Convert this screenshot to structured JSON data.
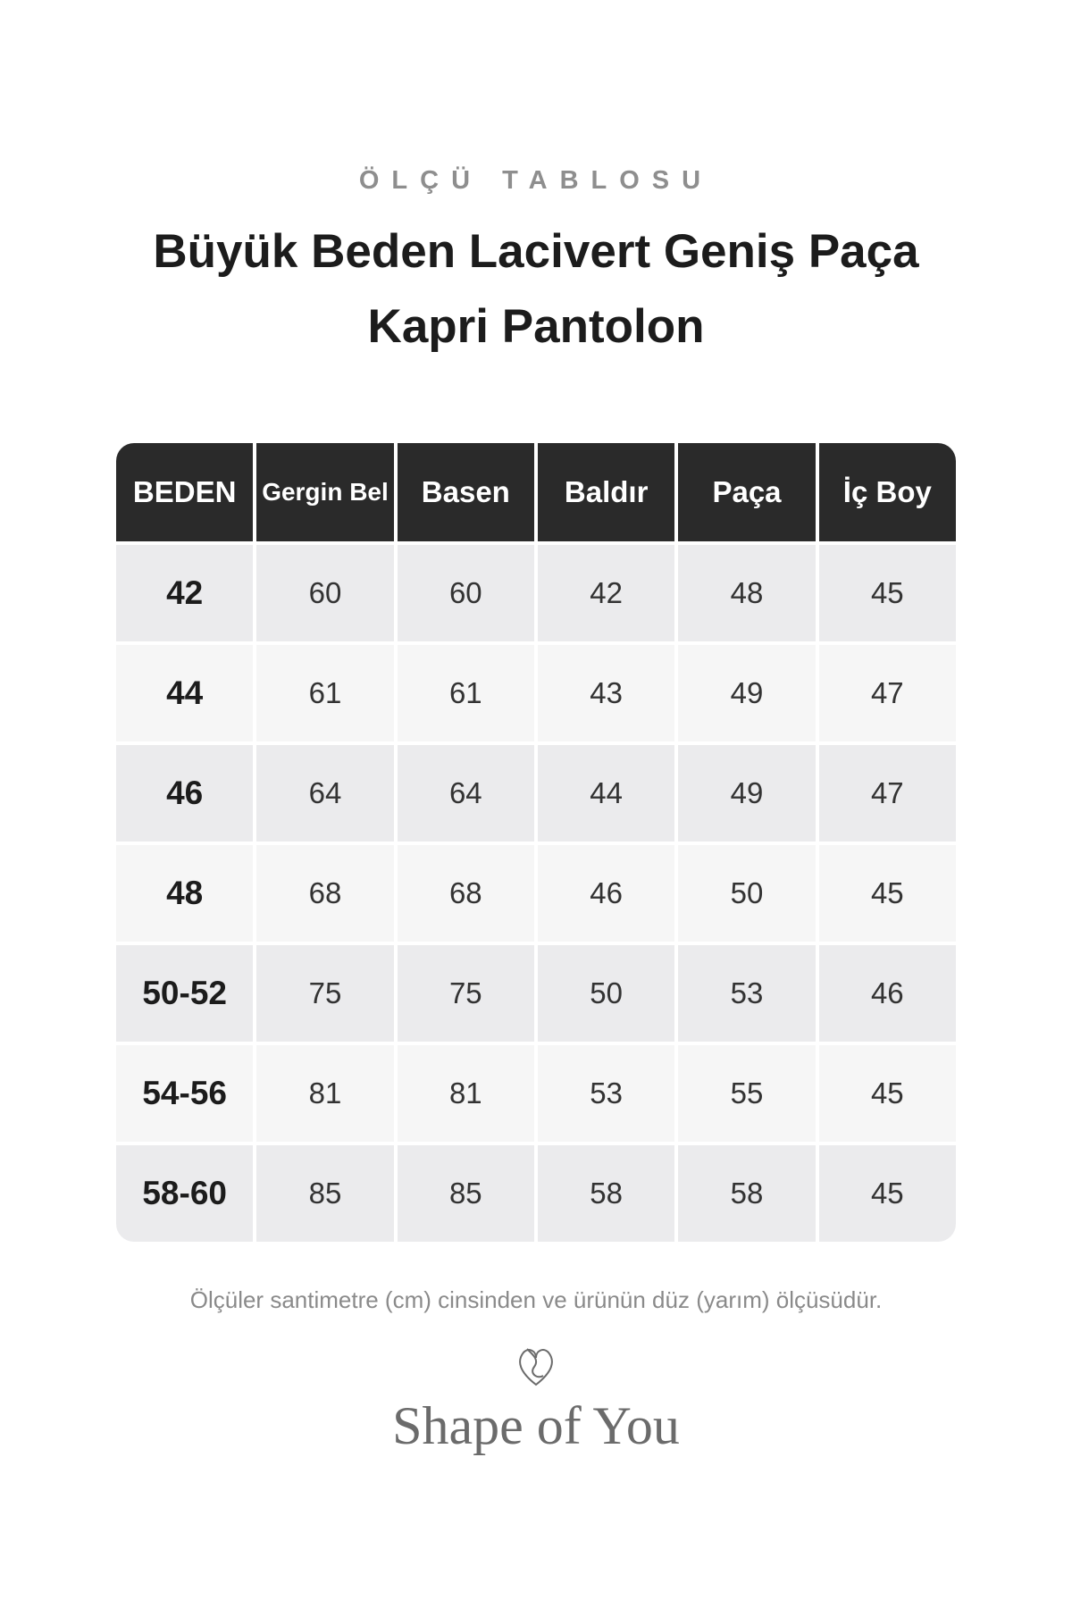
{
  "header": {
    "eyebrow": "ÖLÇÜ TABLOSU",
    "title": "Büyük Beden Lacivert Geniş Paça Kapri Pantolon"
  },
  "table": {
    "columns": [
      "BEDEN",
      "Gergin Bel",
      "Basen",
      "Baldır",
      "Paça",
      "İç Boy"
    ],
    "rows": [
      [
        "42",
        "60",
        "60",
        "42",
        "48",
        "45"
      ],
      [
        "44",
        "61",
        "61",
        "43",
        "49",
        "47"
      ],
      [
        "46",
        "64",
        "64",
        "44",
        "49",
        "47"
      ],
      [
        "48",
        "68",
        "68",
        "46",
        "50",
        "45"
      ],
      [
        "50-52",
        "75",
        "75",
        "50",
        "53",
        "46"
      ],
      [
        "54-56",
        "81",
        "81",
        "53",
        "55",
        "45"
      ],
      [
        "58-60",
        "85",
        "85",
        "58",
        "58",
        "45"
      ]
    ]
  },
  "footnote": "Ölçüler santimetre (cm) cinsinden ve ürünün düz (yarım) ölçüsüdür.",
  "brand": {
    "name": "Shape of You"
  }
}
